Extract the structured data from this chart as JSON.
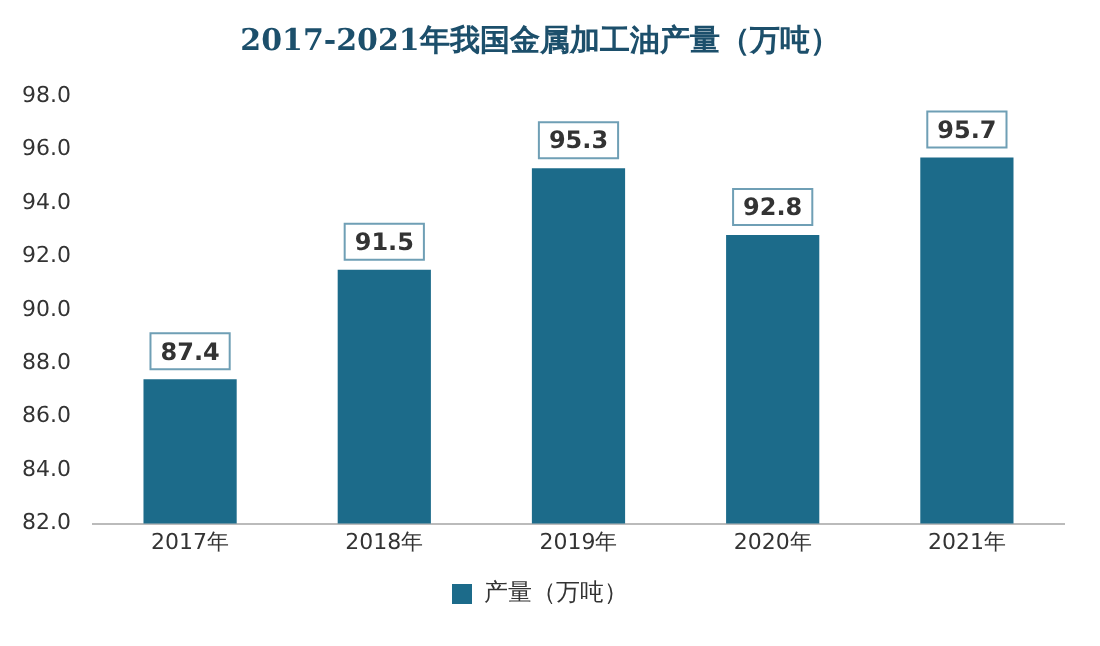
{
  "chart_data": {
    "type": "bar",
    "title": "2017-2021年我国金属加工油产量（万吨）",
    "categories": [
      "2017年",
      "2018年",
      "2019年",
      "2020年",
      "2021年"
    ],
    "series": [
      {
        "name": "产量（万吨）",
        "color": "#1c6b8a",
        "values": [
          87.4,
          91.5,
          95.3,
          92.8,
          95.7
        ]
      }
    ],
    "ylim": [
      82,
      98
    ],
    "yticks": [
      {
        "value": 82,
        "label": "82.0"
      },
      {
        "value": 84,
        "label": "84.0"
      },
      {
        "value": 86,
        "label": "86.0"
      },
      {
        "value": 88,
        "label": "88.0"
      },
      {
        "value": 90,
        "label": "90.0"
      },
      {
        "value": 92,
        "label": "92.0"
      },
      {
        "value": 94,
        "label": "94.0"
      },
      {
        "value": 96,
        "label": "96.0"
      },
      {
        "value": 98,
        "label": "98.0"
      }
    ],
    "data_labels": true,
    "legend": "bottom",
    "grid": false
  }
}
